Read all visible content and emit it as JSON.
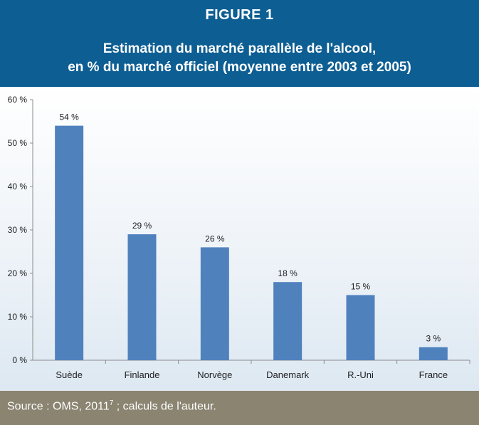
{
  "figure_label": "FIGURE 1",
  "title_line1": "Estimation du marché parallèle de l'alcool,",
  "title_line2": "en % du marché officiel (moyenne entre 2003 et 2005)",
  "source_prefix": "Source : OMS, 2011",
  "source_sup": "7",
  "source_suffix": " ; calculs de l'auteur.",
  "colors": {
    "header_bg": "#0d5e93",
    "bar": "#4f81bd",
    "footer_bg": "#8a8471"
  },
  "chart_data": {
    "type": "bar",
    "categories": [
      "Suède",
      "Finlande",
      "Norvège",
      "Danemark",
      "R.-Uni",
      "France"
    ],
    "values": [
      54,
      29,
      26,
      18,
      15,
      3
    ],
    "data_labels": [
      "54 %",
      "29 %",
      "26 %",
      "18 %",
      "15 %",
      "3 %"
    ],
    "y_ticks": [
      0,
      10,
      20,
      30,
      40,
      50,
      60
    ],
    "y_tick_labels": [
      "0 %",
      "10 %",
      "20 %",
      "30 %",
      "40 %",
      "50 %",
      "60 %"
    ],
    "ylim": [
      0,
      60
    ],
    "grid": false,
    "legend": "none"
  }
}
